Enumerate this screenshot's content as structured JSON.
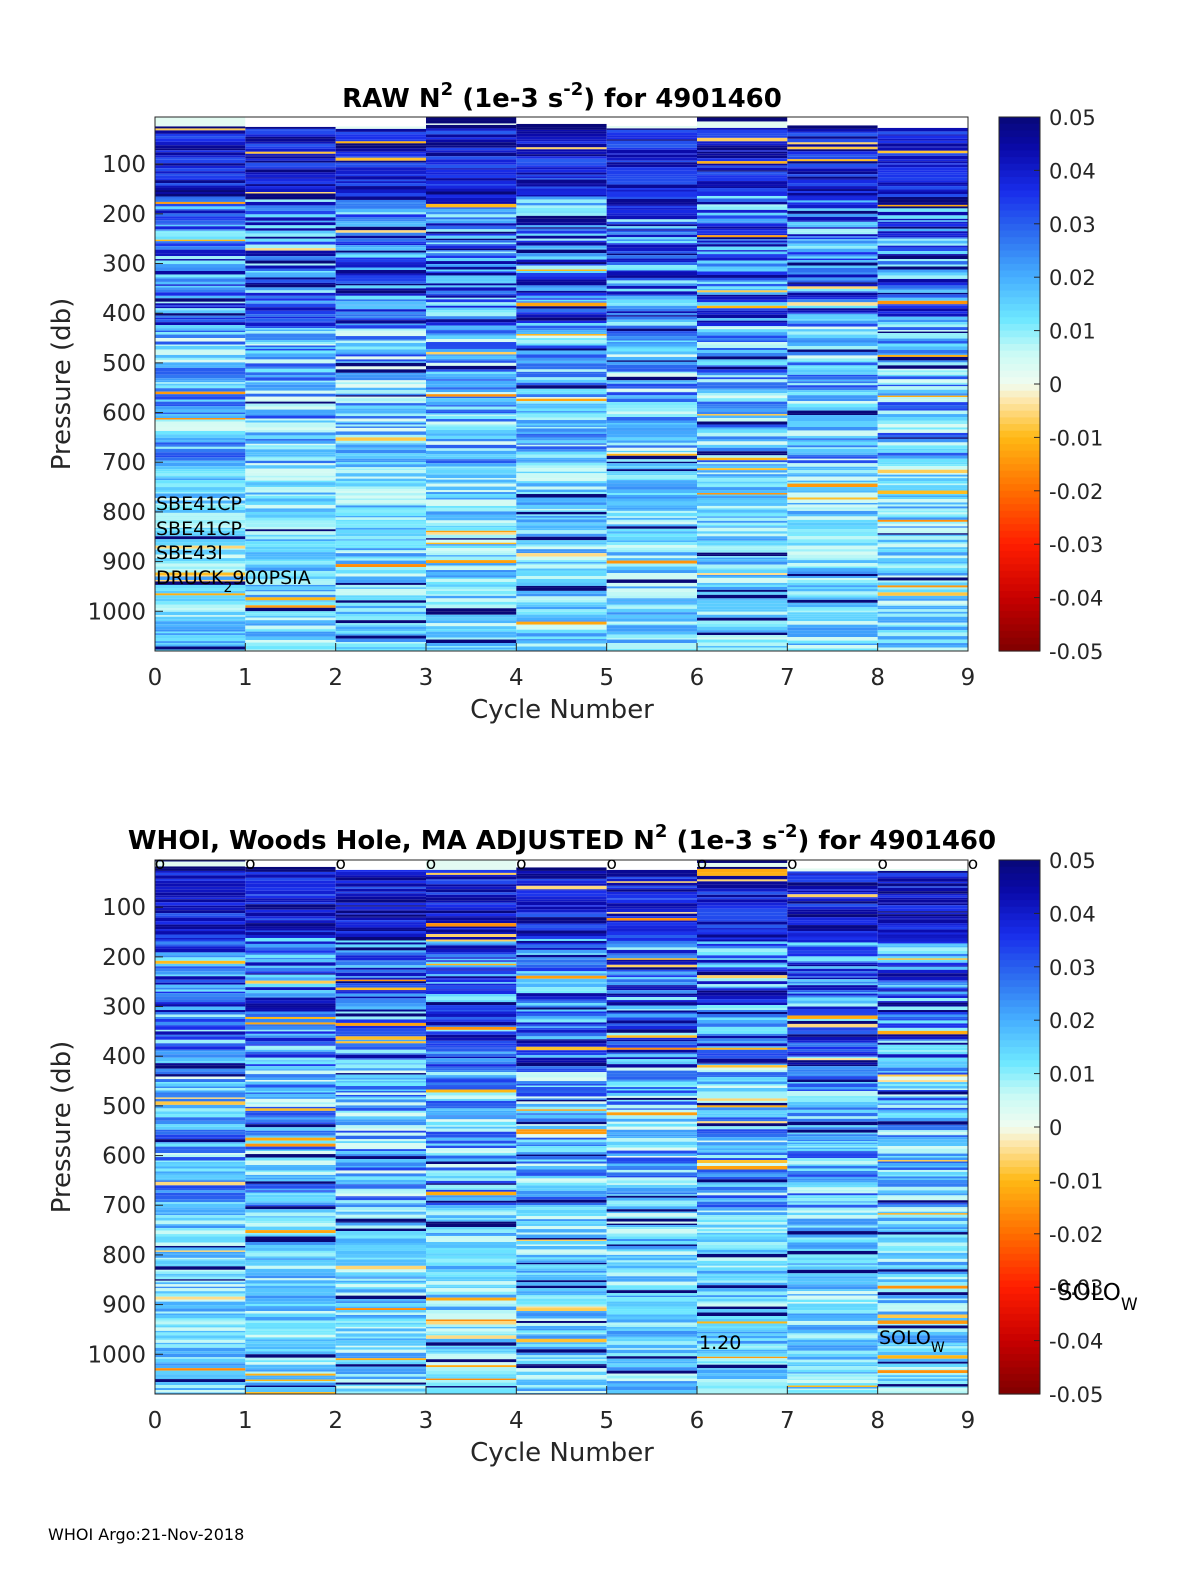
{
  "footer": "WHOI Argo:21-Nov-2018",
  "colorbar": {
    "ticks": [
      "0.05",
      "0.04",
      "0.03",
      "0.02",
      "0.01",
      "0",
      "-0.01",
      "-0.02",
      "-0.03",
      "-0.04",
      "-0.05"
    ],
    "range": [
      -0.05,
      0.05
    ],
    "colors": [
      "#7f0000",
      "#ff0000",
      "#ff8c00",
      "#ffd24d",
      "#fbf0d0",
      "#e8fbf4",
      "#6fe6ff",
      "#3a9bff",
      "#1414ff",
      "#0a0a8c"
    ]
  },
  "chart_data": [
    {
      "type": "heatmap",
      "title_parts": {
        "pre": "RAW N",
        "sup1": "2",
        "mid": " (1e-3 s",
        "sup2": "-2",
        "post": ") for 4901460"
      },
      "xlabel": "Cycle Number",
      "ylabel": "Pressure (db)",
      "x_ticks": [
        "0",
        "1",
        "2",
        "3",
        "4",
        "5",
        "6",
        "7",
        "8",
        "9"
      ],
      "y_ticks": [
        "100",
        "200",
        "300",
        "400",
        "500",
        "600",
        "700",
        "800",
        "900",
        "1000"
      ],
      "xlim": [
        0,
        9
      ],
      "ylim": [
        1080,
        5
      ],
      "cycles": [
        0,
        1,
        2,
        3,
        4,
        5,
        6,
        7,
        8
      ],
      "colorbar_range": [
        -0.05,
        0.05
      ],
      "sensor_labels": [
        {
          "text": "SBE41CP"
        },
        {
          "text": "SBE41CP"
        },
        {
          "text": "SBE43I"
        },
        {
          "text_pre": "DRUCK",
          "text_sub": "2",
          "text_post": "900PSIA"
        }
      ]
    },
    {
      "type": "heatmap",
      "title_parts": {
        "pre": "WHOI, Woods Hole, MA  ADJUSTED N",
        "sup1": "2",
        "mid": " (1e-3 s",
        "sup2": "-2",
        "post": ") for 4901460"
      },
      "xlabel": "Cycle Number",
      "ylabel": "Pressure (db)",
      "x_ticks": [
        "0",
        "1",
        "2",
        "3",
        "4",
        "5",
        "6",
        "7",
        "8",
        "9"
      ],
      "y_ticks": [
        "100",
        "200",
        "300",
        "400",
        "500",
        "600",
        "700",
        "800",
        "900",
        "1000"
      ],
      "xlim": [
        0,
        9
      ],
      "ylim": [
        1080,
        5
      ],
      "cycles": [
        0,
        1,
        2,
        3,
        4,
        5,
        6,
        7,
        8
      ],
      "colorbar_range": [
        -0.05,
        0.05
      ],
      "top_markers": [
        "o",
        "o",
        "o",
        "o",
        "o",
        "o",
        "o",
        "o",
        "o",
        "o"
      ],
      "annotations": [
        {
          "text": "1.20",
          "x": 6.0,
          "y": 980
        },
        {
          "text_pre": "SOLO",
          "text_sub": "W",
          "x": 8.0,
          "y": 975
        }
      ],
      "side_label": {
        "text_pre": "SOLO",
        "text_sub": "W"
      }
    }
  ]
}
